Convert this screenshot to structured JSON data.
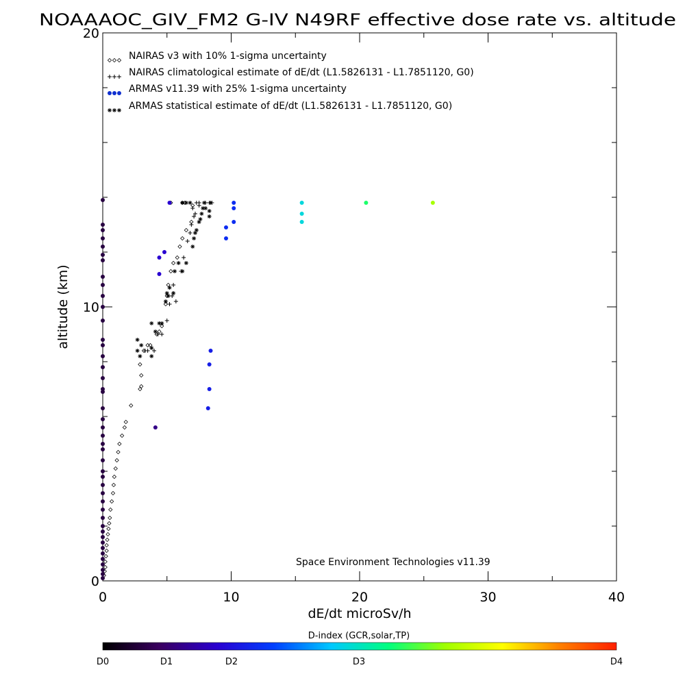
{
  "chart_data": {
    "type": "scatter",
    "title": "NOAAAOC_GIV_FM2 G-IV   N49RF  effective dose rate vs. altitude",
    "xlabel": "dE/dt microSv/h",
    "ylabel": "altitude (km)",
    "xlim": [
      0,
      40
    ],
    "ylim": [
      0,
      20
    ],
    "x_ticks": [
      "0",
      "10",
      "20",
      "30",
      "40"
    ],
    "y_ticks": [
      "0",
      "10",
      "20"
    ],
    "grid": false,
    "legend_position": "top-left",
    "annotation": "Space Environment Technologies v11.39",
    "colorbar": {
      "title": "D-index (GCR,solar,TP)",
      "labels": [
        {
          "text": "D0",
          "value": 0
        },
        {
          "text": "D1",
          "value": 1
        },
        {
          "text": "D2",
          "value": 2
        },
        {
          "text": "D3",
          "value": 3
        },
        {
          "text": "D4",
          "value": 4
        }
      ],
      "stops": [
        "#000000",
        "#3a0060",
        "#2a00d0",
        "#0040ff",
        "#00c8ff",
        "#00ff80",
        "#a0ff00",
        "#ffff00",
        "#ff8000",
        "#ff2000"
      ]
    },
    "series": [
      {
        "name": "NAIRAS v3 with 10% 1-sigma uncertainty",
        "marker": "diamond",
        "color": "#000000",
        "points": [
          [
            0.1,
            0.2
          ],
          [
            0.15,
            0.35
          ],
          [
            0.2,
            0.5
          ],
          [
            0.2,
            0.7
          ],
          [
            0.25,
            0.9
          ],
          [
            0.3,
            1.1
          ],
          [
            0.3,
            1.3
          ],
          [
            0.35,
            1.5
          ],
          [
            0.4,
            1.7
          ],
          [
            0.45,
            1.9
          ],
          [
            0.5,
            2.1
          ],
          [
            0.55,
            2.3
          ],
          [
            0.6,
            2.6
          ],
          [
            0.7,
            2.9
          ],
          [
            0.8,
            3.2
          ],
          [
            0.85,
            3.5
          ],
          [
            0.9,
            3.8
          ],
          [
            1.0,
            4.1
          ],
          [
            1.1,
            4.4
          ],
          [
            1.2,
            4.7
          ],
          [
            1.3,
            5.0
          ],
          [
            1.5,
            5.3
          ],
          [
            1.7,
            5.6
          ],
          [
            1.8,
            5.8
          ],
          [
            2.2,
            6.4
          ],
          [
            2.9,
            7.0
          ],
          [
            3.0,
            7.1
          ],
          [
            3.0,
            7.5
          ],
          [
            2.9,
            7.9
          ],
          [
            3.2,
            8.4
          ],
          [
            3.5,
            8.6
          ],
          [
            3.7,
            8.6
          ],
          [
            4.2,
            9.0
          ],
          [
            4.4,
            9.1
          ],
          [
            4.6,
            9.3
          ],
          [
            4.9,
            10.1
          ],
          [
            5.0,
            10.4
          ],
          [
            5.1,
            10.8
          ],
          [
            5.3,
            11.3
          ],
          [
            5.5,
            11.6
          ],
          [
            5.8,
            11.8
          ],
          [
            6.0,
            12.2
          ],
          [
            6.2,
            12.5
          ],
          [
            6.5,
            12.8
          ],
          [
            6.9,
            13.1
          ],
          [
            7.0,
            13.7
          ],
          [
            6.4,
            13.8
          ],
          [
            6.2,
            13.8
          ],
          [
            5.3,
            13.8
          ]
        ]
      },
      {
        "name": "NAIRAS climatological estimate of dE/dt (L1.5826131 - L1.7851120, G0)",
        "marker": "plus",
        "color": "#000000",
        "points": [
          [
            3.3,
            8.4
          ],
          [
            3.5,
            8.4
          ],
          [
            4.0,
            8.4
          ],
          [
            4.3,
            9.0
          ],
          [
            4.6,
            9.0
          ],
          [
            5.0,
            9.5
          ],
          [
            5.2,
            10.1
          ],
          [
            5.4,
            10.4
          ],
          [
            5.5,
            10.5
          ],
          [
            5.5,
            10.8
          ],
          [
            5.7,
            10.2
          ],
          [
            6.1,
            11.3
          ],
          [
            6.3,
            11.8
          ],
          [
            6.6,
            12.4
          ],
          [
            6.8,
            12.7
          ],
          [
            6.9,
            13.0
          ],
          [
            7.1,
            13.3
          ],
          [
            7.2,
            13.4
          ],
          [
            7.0,
            13.6
          ],
          [
            7.5,
            13.7
          ],
          [
            8.0,
            13.8
          ],
          [
            8.3,
            13.8
          ],
          [
            8.5,
            13.8
          ],
          [
            7.5,
            13.8
          ],
          [
            7.3,
            13.8
          ]
        ]
      },
      {
        "name": "ARMAS v11.39 with 25% 1-sigma uncertainty",
        "marker": "circle",
        "color": "#1030d0",
        "points": [
          [
            0,
            0.1,
            0.3
          ],
          [
            0,
            0.25,
            0.3
          ],
          [
            0,
            0.4,
            0.3
          ],
          [
            0,
            0.6,
            0.3
          ],
          [
            0,
            0.8,
            0.3
          ],
          [
            0,
            1.0,
            0.3
          ],
          [
            0,
            1.2,
            0.3
          ],
          [
            0,
            1.4,
            0.3
          ],
          [
            0,
            1.6,
            0.3
          ],
          [
            0,
            1.8,
            0.3
          ],
          [
            0,
            2.0,
            0.3
          ],
          [
            0,
            2.3,
            0.3
          ],
          [
            0,
            2.6,
            0.3
          ],
          [
            0,
            2.9,
            0.3
          ],
          [
            0,
            3.2,
            0.3
          ],
          [
            0,
            3.5,
            0.3
          ],
          [
            0,
            3.8,
            0.3
          ],
          [
            0,
            4.0,
            0.3
          ],
          [
            0,
            4.4,
            0.3
          ],
          [
            0,
            4.8,
            0.3
          ],
          [
            0,
            5.0,
            0.3
          ],
          [
            0,
            5.3,
            0.3
          ],
          [
            0,
            5.6,
            0.3
          ],
          [
            0,
            5.9,
            0.3
          ],
          [
            0,
            6.3,
            0.3
          ],
          [
            0,
            6.9,
            0.3
          ],
          [
            0,
            7.0,
            0.3
          ],
          [
            0,
            7.4,
            0.3
          ],
          [
            0,
            7.8,
            0.3
          ],
          [
            0,
            8.2,
            0.3
          ],
          [
            0,
            8.6,
            0.3
          ],
          [
            0,
            8.8,
            0.3
          ],
          [
            0,
            9.5,
            0.3
          ],
          [
            0,
            10.0,
            0.3
          ],
          [
            0,
            10.4,
            0.3
          ],
          [
            0,
            10.8,
            0.3
          ],
          [
            0,
            11.1,
            0.3
          ],
          [
            0,
            11.7,
            0.3
          ],
          [
            0,
            11.9,
            0.3
          ],
          [
            0,
            12.2,
            0.3
          ],
          [
            0,
            12.5,
            0.3
          ],
          [
            0,
            12.8,
            0.3
          ],
          [
            0,
            13.0,
            0.3
          ],
          [
            0,
            13.9,
            0.3
          ],
          [
            4.1,
            5.6,
            0.6
          ],
          [
            4.4,
            11.2,
            0.9
          ],
          [
            4.4,
            11.8,
            0.9
          ],
          [
            4.8,
            12.0,
            0.9
          ],
          [
            5.2,
            13.8,
            0.9
          ],
          [
            8.2,
            6.3,
            1.1
          ],
          [
            8.3,
            7.0,
            1.1
          ],
          [
            8.3,
            7.9,
            1.1
          ],
          [
            8.4,
            8.4,
            1.1
          ],
          [
            9.6,
            12.5,
            1.2
          ],
          [
            9.6,
            12.9,
            1.2
          ],
          [
            10.2,
            13.1,
            1.2
          ],
          [
            10.2,
            13.6,
            1.2
          ],
          [
            10.2,
            13.8,
            1.2
          ],
          [
            15.5,
            13.1,
            1.9
          ],
          [
            15.5,
            13.4,
            1.9
          ],
          [
            15.5,
            13.8,
            1.9
          ],
          [
            20.5,
            13.8,
            2.3
          ],
          [
            25.7,
            13.8,
            2.7
          ]
        ]
      },
      {
        "name": "ARMAS statistical estimate of dE/dt (L1.5826131 - L1.7851120, G0)",
        "marker": "asterisk",
        "color": "#000000",
        "points": [
          [
            2.7,
            8.4
          ],
          [
            2.7,
            8.8
          ],
          [
            2.9,
            8.2
          ],
          [
            3.0,
            8.6
          ],
          [
            3.8,
            8.2
          ],
          [
            3.8,
            8.5
          ],
          [
            3.8,
            9.4
          ],
          [
            4.1,
            9.1
          ],
          [
            4.4,
            9.4
          ],
          [
            4.6,
            9.4
          ],
          [
            4.9,
            10.2
          ],
          [
            5.0,
            10.5
          ],
          [
            5.1,
            10.4
          ],
          [
            5.2,
            10.7
          ],
          [
            5.5,
            10.5
          ],
          [
            5.6,
            11.3
          ],
          [
            5.9,
            11.6
          ],
          [
            6.2,
            11.3
          ],
          [
            6.5,
            11.6
          ],
          [
            7.0,
            12.2
          ],
          [
            7.1,
            12.5
          ],
          [
            7.2,
            12.7
          ],
          [
            7.3,
            12.8
          ],
          [
            7.5,
            13.1
          ],
          [
            7.6,
            13.2
          ],
          [
            7.7,
            13.4
          ],
          [
            7.8,
            13.6
          ],
          [
            7.9,
            13.8
          ],
          [
            8.0,
            13.6
          ],
          [
            8.3,
            13.5
          ],
          [
            8.3,
            13.3
          ],
          [
            8.4,
            13.8
          ],
          [
            6.8,
            13.8
          ],
          [
            6.5,
            13.8
          ],
          [
            6.2,
            13.8
          ]
        ]
      }
    ]
  }
}
